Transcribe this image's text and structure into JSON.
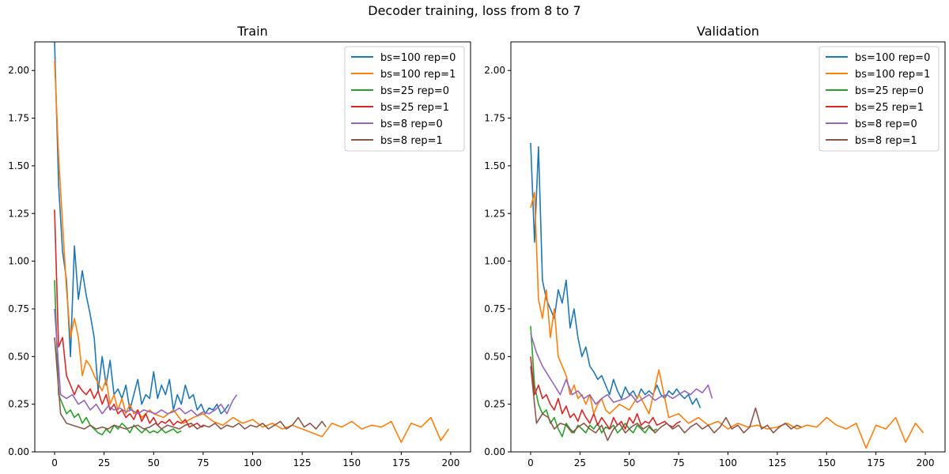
{
  "figure": {
    "suptitle": "Decoder training, loss from 8 to 7"
  },
  "colors": {
    "bs=100 rep=0": "#1f77b4",
    "bs=100 rep=1": "#ff7f0e",
    "bs=25 rep=0": "#2ca02c",
    "bs=25 rep=1": "#d62728",
    "bs=8 rep=0": "#9467bd",
    "bs=8 rep=1": "#8c564b"
  },
  "chart_data": [
    {
      "type": "line",
      "title": "Train",
      "xlabel": "",
      "ylabel": "",
      "xlim": [
        -10,
        210
      ],
      "ylim": [
        0,
        2.15
      ],
      "xticks": [
        0,
        25,
        50,
        75,
        100,
        125,
        150,
        175,
        200
      ],
      "yticks": [
        0.0,
        0.25,
        0.5,
        0.75,
        1.0,
        1.25,
        1.5,
        1.75,
        2.0
      ],
      "ytick_labels": [
        "0.00",
        "0.25",
        "0.50",
        "0.75",
        "1.00",
        "1.25",
        "1.50",
        "1.75",
        "2.00"
      ],
      "legend": "top-right",
      "series": [
        {
          "name": "bs=100 rep=0",
          "x": [
            0,
            2,
            4,
            6,
            8,
            10,
            12,
            14,
            16,
            18,
            20,
            22,
            24,
            26,
            28,
            30,
            32,
            34,
            36,
            38,
            40,
            42,
            44,
            46,
            48,
            50,
            52,
            54,
            56,
            58,
            60,
            62,
            64,
            66,
            68,
            70,
            72,
            74,
            76,
            78,
            80,
            82,
            84,
            86,
            88
          ],
          "y": [
            2.15,
            1.4,
            1.05,
            0.9,
            0.5,
            1.08,
            0.8,
            0.95,
            0.82,
            0.72,
            0.6,
            0.32,
            0.5,
            0.35,
            0.48,
            0.3,
            0.33,
            0.28,
            0.35,
            0.22,
            0.3,
            0.38,
            0.25,
            0.3,
            0.28,
            0.42,
            0.28,
            0.35,
            0.3,
            0.38,
            0.22,
            0.3,
            0.25,
            0.35,
            0.28,
            0.3,
            0.22,
            0.25,
            0.2,
            0.23,
            0.22,
            0.25,
            0.2,
            0.22,
            0.25
          ]
        },
        {
          "name": "bs=100 rep=1",
          "x": [
            0,
            2,
            4,
            6,
            8,
            10,
            12,
            14,
            16,
            18,
            20,
            22,
            24,
            26,
            28,
            30,
            32,
            34,
            36,
            38,
            40,
            42,
            44,
            46,
            48,
            50,
            55,
            60,
            65,
            70,
            75,
            80,
            85,
            90,
            95,
            100,
            105,
            110,
            115,
            120,
            125,
            130,
            135,
            140,
            145,
            150,
            155,
            160,
            165,
            170,
            175,
            180,
            185,
            190,
            195,
            199
          ],
          "y": [
            2.05,
            1.55,
            1.2,
            0.85,
            0.6,
            0.7,
            0.6,
            0.4,
            0.48,
            0.45,
            0.4,
            0.36,
            0.32,
            0.38,
            0.25,
            0.3,
            0.22,
            0.28,
            0.2,
            0.25,
            0.2,
            0.22,
            0.18,
            0.2,
            0.22,
            0.2,
            0.18,
            0.22,
            0.15,
            0.18,
            0.2,
            0.16,
            0.14,
            0.18,
            0.15,
            0.17,
            0.13,
            0.15,
            0.12,
            0.14,
            0.12,
            0.1,
            0.08,
            0.15,
            0.13,
            0.16,
            0.12,
            0.14,
            0.13,
            0.16,
            0.05,
            0.15,
            0.13,
            0.18,
            0.06,
            0.12
          ]
        },
        {
          "name": "bs=25 rep=0",
          "x": [
            0,
            2,
            4,
            6,
            8,
            10,
            12,
            14,
            16,
            18,
            20,
            22,
            24,
            26,
            28,
            30,
            32,
            34,
            36,
            38,
            40,
            42,
            44,
            46,
            48,
            50,
            52,
            54,
            56,
            58,
            60,
            62,
            64
          ],
          "y": [
            0.9,
            0.3,
            0.25,
            0.2,
            0.22,
            0.18,
            0.2,
            0.15,
            0.18,
            0.14,
            0.12,
            0.1,
            0.09,
            0.12,
            0.1,
            0.14,
            0.12,
            0.15,
            0.13,
            0.1,
            0.14,
            0.12,
            0.1,
            0.12,
            0.1,
            0.11,
            0.1,
            0.12,
            0.1,
            0.11,
            0.12,
            0.1,
            0.11
          ]
        },
        {
          "name": "bs=25 rep=1",
          "x": [
            0,
            2,
            4,
            6,
            8,
            10,
            12,
            14,
            16,
            18,
            20,
            22,
            24,
            26,
            28,
            30,
            32,
            34,
            36,
            38,
            40,
            42,
            44,
            46,
            48,
            50,
            52,
            54,
            56,
            58,
            60,
            62,
            64,
            66,
            68,
            70,
            72,
            74,
            76
          ],
          "y": [
            1.27,
            0.55,
            0.6,
            0.4,
            0.35,
            0.3,
            0.35,
            0.32,
            0.3,
            0.33,
            0.28,
            0.32,
            0.25,
            0.3,
            0.22,
            0.25,
            0.2,
            0.22,
            0.18,
            0.2,
            0.17,
            0.22,
            0.16,
            0.2,
            0.15,
            0.18,
            0.14,
            0.16,
            0.15,
            0.17,
            0.14,
            0.16,
            0.15,
            0.17,
            0.13,
            0.14,
            0.15,
            0.13,
            0.14
          ]
        },
        {
          "name": "bs=8 rep=0",
          "x": [
            0,
            3,
            6,
            9,
            12,
            15,
            18,
            21,
            24,
            27,
            30,
            33,
            36,
            39,
            42,
            45,
            48,
            51,
            54,
            57,
            60,
            63,
            66,
            69,
            72,
            75,
            78,
            81,
            84,
            87,
            90,
            92
          ],
          "y": [
            0.75,
            0.3,
            0.28,
            0.3,
            0.25,
            0.27,
            0.22,
            0.25,
            0.2,
            0.24,
            0.22,
            0.23,
            0.21,
            0.22,
            0.2,
            0.22,
            0.21,
            0.2,
            0.22,
            0.2,
            0.21,
            0.23,
            0.2,
            0.22,
            0.19,
            0.21,
            0.2,
            0.22,
            0.25,
            0.2,
            0.27,
            0.3
          ]
        },
        {
          "name": "bs=8 rep=1",
          "x": [
            0,
            3,
            6,
            9,
            12,
            15,
            18,
            21,
            24,
            27,
            30,
            33,
            36,
            39,
            42,
            45,
            48,
            51,
            54,
            57,
            60,
            63,
            66,
            69,
            72,
            75,
            78,
            81,
            84,
            87,
            90,
            93,
            96,
            99,
            102,
            105,
            108,
            111,
            114,
            117,
            120,
            123,
            126,
            129,
            132,
            135,
            137
          ],
          "y": [
            0.6,
            0.2,
            0.15,
            0.14,
            0.13,
            0.12,
            0.14,
            0.12,
            0.13,
            0.12,
            0.14,
            0.13,
            0.12,
            0.13,
            0.14,
            0.12,
            0.13,
            0.15,
            0.12,
            0.14,
            0.13,
            0.12,
            0.14,
            0.15,
            0.12,
            0.14,
            0.13,
            0.15,
            0.12,
            0.14,
            0.13,
            0.15,
            0.12,
            0.14,
            0.13,
            0.15,
            0.12,
            0.14,
            0.16,
            0.12,
            0.14,
            0.18,
            0.13,
            0.15,
            0.12,
            0.16,
            0.13
          ]
        }
      ]
    },
    {
      "type": "line",
      "title": "Validation",
      "xlabel": "",
      "ylabel": "",
      "xlim": [
        -10,
        210
      ],
      "ylim": [
        0,
        2.15
      ],
      "xticks": [
        0,
        25,
        50,
        75,
        100,
        125,
        150,
        175,
        200
      ],
      "yticks": [
        0.0,
        0.25,
        0.5,
        0.75,
        1.0,
        1.25,
        1.5,
        1.75,
        2.0
      ],
      "ytick_labels": [
        "0.00",
        "0.25",
        "0.50",
        "0.75",
        "1.00",
        "1.25",
        "1.50",
        "1.75",
        "2.00"
      ],
      "legend": "top-right",
      "series": [
        {
          "name": "bs=100 rep=0",
          "x": [
            0,
            2,
            4,
            6,
            8,
            10,
            12,
            14,
            16,
            18,
            20,
            22,
            24,
            26,
            28,
            30,
            32,
            34,
            36,
            38,
            40,
            42,
            44,
            46,
            48,
            50,
            52,
            54,
            56,
            58,
            60,
            62,
            64,
            66,
            68,
            70,
            72,
            74,
            76,
            78,
            80,
            82,
            84,
            86
          ],
          "y": [
            1.62,
            1.1,
            1.6,
            0.9,
            0.8,
            0.75,
            0.7,
            0.85,
            0.78,
            0.9,
            0.65,
            0.75,
            0.6,
            0.5,
            0.55,
            0.45,
            0.42,
            0.38,
            0.4,
            0.35,
            0.3,
            0.38,
            0.32,
            0.28,
            0.34,
            0.3,
            0.32,
            0.28,
            0.33,
            0.3,
            0.32,
            0.3,
            0.35,
            0.3,
            0.28,
            0.32,
            0.3,
            0.33,
            0.3,
            0.28,
            0.3,
            0.25,
            0.28,
            0.23
          ]
        },
        {
          "name": "bs=100 rep=1",
          "x": [
            0,
            2,
            4,
            6,
            8,
            10,
            12,
            14,
            16,
            18,
            20,
            22,
            24,
            26,
            28,
            30,
            32,
            34,
            36,
            38,
            40,
            45,
            50,
            55,
            60,
            65,
            70,
            75,
            80,
            85,
            90,
            95,
            100,
            105,
            110,
            115,
            120,
            125,
            130,
            135,
            140,
            145,
            150,
            155,
            160,
            165,
            170,
            175,
            180,
            185,
            190,
            195,
            199
          ],
          "y": [
            1.28,
            1.36,
            0.8,
            0.7,
            0.85,
            0.6,
            0.75,
            0.5,
            0.45,
            0.4,
            0.3,
            0.35,
            0.28,
            0.3,
            0.25,
            0.3,
            0.2,
            0.25,
            0.28,
            0.22,
            0.2,
            0.25,
            0.22,
            0.3,
            0.2,
            0.43,
            0.18,
            0.2,
            0.15,
            0.18,
            0.14,
            0.16,
            0.12,
            0.15,
            0.13,
            0.14,
            0.12,
            0.13,
            0.15,
            0.12,
            0.14,
            0.13,
            0.18,
            0.14,
            0.12,
            0.15,
            0.02,
            0.14,
            0.12,
            0.18,
            0.05,
            0.15,
            0.1
          ]
        },
        {
          "name": "bs=25 rep=0",
          "x": [
            0,
            2,
            4,
            6,
            8,
            10,
            12,
            14,
            16,
            18,
            20,
            22,
            24,
            26,
            28,
            30,
            32,
            34,
            36,
            38,
            40,
            42,
            44,
            46,
            48,
            50,
            52,
            54,
            56,
            58,
            60,
            62,
            64
          ],
          "y": [
            0.66,
            0.35,
            0.25,
            0.2,
            0.22,
            0.15,
            0.18,
            0.12,
            0.08,
            0.15,
            0.12,
            0.1,
            0.14,
            0.12,
            0.1,
            0.14,
            0.12,
            0.15,
            0.1,
            0.13,
            0.12,
            0.14,
            0.1,
            0.12,
            0.15,
            0.12,
            0.1,
            0.14,
            0.12,
            0.1,
            0.13,
            0.11,
            0.12
          ]
        },
        {
          "name": "bs=25 rep=1",
          "x": [
            0,
            2,
            4,
            6,
            8,
            10,
            12,
            14,
            16,
            18,
            20,
            22,
            24,
            26,
            28,
            30,
            32,
            34,
            36,
            38,
            40,
            42,
            44,
            46,
            48,
            50,
            52,
            54,
            56,
            58,
            60,
            62,
            64,
            66,
            68,
            70,
            72,
            74,
            76
          ],
          "y": [
            0.5,
            0.3,
            0.35,
            0.28,
            0.3,
            0.25,
            0.22,
            0.28,
            0.2,
            0.24,
            0.18,
            0.2,
            0.16,
            0.22,
            0.18,
            0.15,
            0.2,
            0.14,
            0.18,
            0.15,
            0.12,
            0.18,
            0.14,
            0.16,
            0.12,
            0.18,
            0.15,
            0.2,
            0.14,
            0.16,
            0.15,
            0.18,
            0.14,
            0.15,
            0.16,
            0.14,
            0.13,
            0.15,
            0.16
          ]
        },
        {
          "name": "bs=8 rep=0",
          "x": [
            0,
            3,
            6,
            9,
            12,
            15,
            18,
            21,
            24,
            27,
            30,
            33,
            36,
            39,
            42,
            45,
            48,
            51,
            54,
            57,
            60,
            63,
            66,
            69,
            72,
            75,
            78,
            81,
            84,
            87,
            90,
            92
          ],
          "y": [
            0.62,
            0.52,
            0.45,
            0.4,
            0.35,
            0.3,
            0.38,
            0.3,
            0.32,
            0.28,
            0.3,
            0.25,
            0.28,
            0.3,
            0.26,
            0.27,
            0.28,
            0.3,
            0.26,
            0.28,
            0.3,
            0.27,
            0.29,
            0.3,
            0.28,
            0.3,
            0.32,
            0.3,
            0.33,
            0.31,
            0.35,
            0.28
          ]
        },
        {
          "name": "bs=8 rep=1",
          "x": [
            0,
            3,
            6,
            9,
            12,
            15,
            18,
            21,
            24,
            27,
            30,
            33,
            36,
            39,
            42,
            45,
            48,
            51,
            54,
            57,
            60,
            63,
            66,
            69,
            72,
            75,
            78,
            81,
            84,
            87,
            90,
            93,
            96,
            99,
            102,
            105,
            108,
            111,
            114,
            117,
            120,
            123,
            126,
            129,
            132,
            135,
            137
          ],
          "y": [
            0.45,
            0.15,
            0.2,
            0.18,
            0.12,
            0.15,
            0.14,
            0.1,
            0.13,
            0.15,
            0.12,
            0.1,
            0.14,
            0.06,
            0.12,
            0.15,
            0.1,
            0.13,
            0.15,
            0.12,
            0.14,
            0.1,
            0.13,
            0.15,
            0.12,
            0.14,
            0.1,
            0.13,
            0.15,
            0.12,
            0.14,
            0.1,
            0.13,
            0.18,
            0.12,
            0.14,
            0.1,
            0.13,
            0.23,
            0.12,
            0.14,
            0.1,
            0.13,
            0.15,
            0.12,
            0.14,
            0.13
          ]
        }
      ]
    }
  ]
}
